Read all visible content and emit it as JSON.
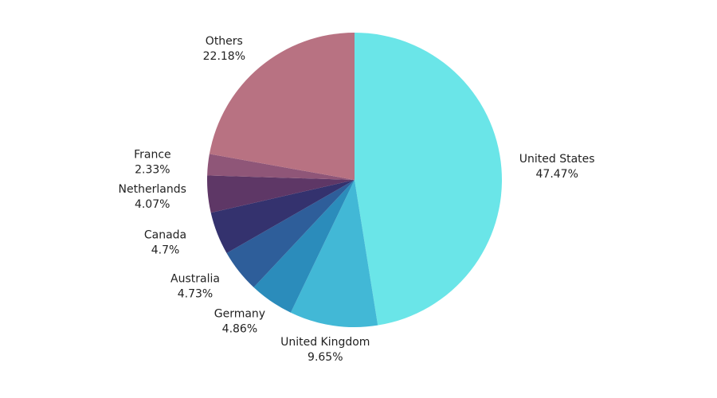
{
  "chart_data": {
    "type": "pie",
    "categories": [
      "United States",
      "United Kingdom",
      "Germany",
      "Australia",
      "Canada",
      "Netherlands",
      "France",
      "Others"
    ],
    "values": [
      47.47,
      9.65,
      4.86,
      4.73,
      4.7,
      4.07,
      2.33,
      22.18
    ],
    "value_labels": [
      "47.47%",
      "9.65%",
      "4.86%",
      "4.73%",
      "4.7%",
      "4.07%",
      "2.33%",
      "22.18%"
    ],
    "colors": [
      "#6ae5e8",
      "#42b8d6",
      "#2b8cbb",
      "#2e5e9a",
      "#34326e",
      "#5e3766",
      "#8f5678",
      "#b87282"
    ]
  }
}
